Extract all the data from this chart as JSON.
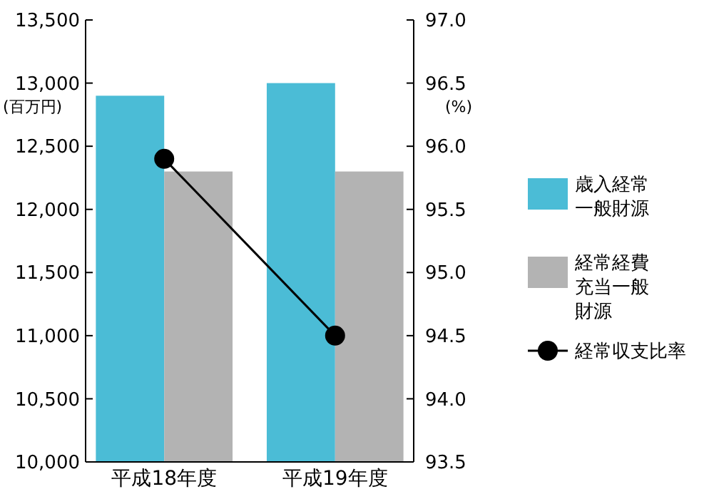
{
  "chart_data": {
    "type": "bar",
    "categories": [
      "平成18年度",
      "平成19年度"
    ],
    "ylabel": "(百万円)",
    "y2label": "(%)",
    "ylim": [
      10000,
      13500
    ],
    "yticks": [
      {
        "value": 10000,
        "label": "10,000"
      },
      {
        "value": 10500,
        "label": "10,500"
      },
      {
        "value": 11000,
        "label": "11,000"
      },
      {
        "value": 11500,
        "label": "11,500"
      },
      {
        "value": 12000,
        "label": "12,000"
      },
      {
        "value": 12500,
        "label": "12,500"
      },
      {
        "value": 13000,
        "label": "13,000"
      },
      {
        "value": 13500,
        "label": "13,500"
      }
    ],
    "y2lim": [
      93.5,
      97.0
    ],
    "y2ticks": [
      {
        "value": 93.5,
        "label": "93.5"
      },
      {
        "value": 94,
        "label": "94.0"
      },
      {
        "value": 94.5,
        "label": "94.5"
      },
      {
        "value": 95,
        "label": "95.0"
      },
      {
        "value": 95.5,
        "label": "95.5"
      },
      {
        "value": 96,
        "label": "96.0"
      },
      {
        "value": 96.5,
        "label": "96.5"
      },
      {
        "value": 97,
        "label": "97.0"
      }
    ],
    "legend": "right",
    "marker": "circle",
    "series": [
      {
        "name": "歳入経常一般財源",
        "color": "#4bbcd6",
        "values": [
          12900,
          13000
        ]
      },
      {
        "name": "経常経費充当一般財源",
        "color": "#b3b3b3",
        "values": [
          12300,
          12300
        ]
      },
      {
        "name": "経常収支比率",
        "type": "line",
        "axis": "y2",
        "color": "#000000",
        "values": [
          95.9,
          94.5
        ]
      }
    ]
  }
}
